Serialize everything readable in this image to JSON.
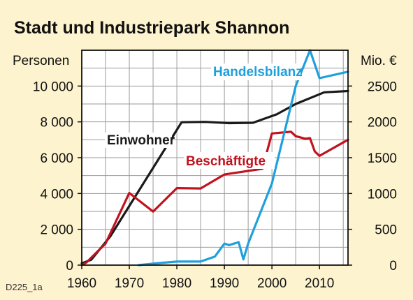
{
  "chart_data": {
    "type": "line",
    "title": "Stadt und Industriepark Shannon",
    "ylabel_left": "Personen",
    "ylabel_right": "Mio. €",
    "source_code": "D225_1a",
    "x_ticks": [
      1960,
      1970,
      1980,
      1990,
      2000,
      2010
    ],
    "x_tick_labels": [
      "1960",
      "1970",
      "1980",
      "1990",
      "2000",
      "2010"
    ],
    "y_left_ticks": [
      0,
      2000,
      4000,
      6000,
      8000,
      10000
    ],
    "y_left_tick_labels": [
      "0",
      "2 000",
      "4 000",
      "6 000",
      "8 000",
      "10 000"
    ],
    "y_right_ticks": [
      0,
      500,
      1000,
      1500,
      2000,
      2500
    ],
    "y_right_tick_labels": [
      "0",
      "500",
      "1000",
      "1500",
      "2000",
      "2500"
    ],
    "xlim": [
      1960,
      2016
    ],
    "ylim_left": [
      0,
      12000
    ],
    "ylim_right": [
      0,
      3000
    ],
    "grid": true,
    "series": [
      {
        "name": "Einwohner",
        "axis": "left",
        "color": "#1a1a1a",
        "x": [
          1960,
          1962,
          1966,
          1981,
          1986,
          1991,
          1996,
          2001,
          2005,
          2011,
          2016
        ],
        "y": [
          100,
          300,
          1600,
          7980,
          8000,
          7930,
          7950,
          8420,
          9000,
          9650,
          9720
        ]
      },
      {
        "name": "Beschäftigte",
        "axis": "left",
        "color": "#c1121f",
        "x": [
          1960,
          1961,
          1965,
          1970,
          1975,
          1980,
          1985,
          1990,
          1998,
          2000,
          2004,
          2005,
          2007,
          2008,
          2009,
          2010,
          2016
        ],
        "y": [
          0,
          150,
          1200,
          4030,
          2990,
          4300,
          4280,
          5060,
          5380,
          7350,
          7450,
          7200,
          7060,
          7090,
          6350,
          6100,
          7000
        ]
      },
      {
        "name": "Handelsbilanz",
        "axis": "right",
        "color": "#1ea0dc",
        "x": [
          1972,
          1975,
          1980,
          1985,
          1988,
          1990,
          1991,
          1992,
          1993,
          1994,
          1995,
          2000,
          2005,
          2008,
          2010,
          2016
        ],
        "y": [
          0,
          20,
          50,
          50,
          120,
          300,
          280,
          300,
          320,
          80,
          300,
          1140,
          2500,
          3000,
          2610,
          2700
        ]
      }
    ]
  }
}
